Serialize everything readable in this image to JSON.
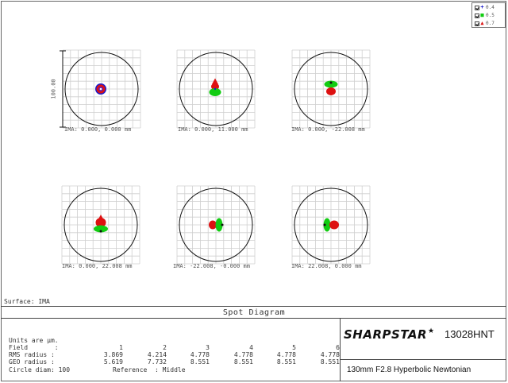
{
  "legend": [
    {
      "symbol": "+",
      "color": "#1a1acc",
      "value": "0.4"
    },
    {
      "symbol": "■",
      "color": "#12cc12",
      "value": "0.5"
    },
    {
      "symbol": "▲",
      "color": "#dd1111",
      "value": "0.7"
    }
  ],
  "scale_label": "100.00",
  "spots": [
    {
      "ima": "IMA: 0.000, 0.000 mm"
    },
    {
      "ima": "IMA: 0.000, 11.000 mm"
    },
    {
      "ima": "IMA: 0.000, -22.008 mm"
    },
    {
      "ima": "IMA: 0.000, 22.008 mm"
    },
    {
      "ima": "IMA: -22.008, -0.000 mm"
    },
    {
      "ima": "IMA: 22.008, 0.000 mm"
    }
  ],
  "surface": "Surface: IMA",
  "title": "Spot Diagram",
  "units": "Units are µm.",
  "table": {
    "field_label": "Field       :",
    "rms_label": "RMS radius :",
    "geo_label": "GEO radius :",
    "fields": [
      "1",
      "2",
      "3",
      "4",
      "5",
      "6"
    ],
    "rms": [
      "3.869",
      "4.214",
      "4.778",
      "4.778",
      "4.778",
      "4.778"
    ],
    "geo": [
      "5.619",
      "7.732",
      "8.551",
      "8.551",
      "8.551",
      "8.551"
    ],
    "circle_diam": "Circle diam: 100",
    "reference": "Reference  : Middle"
  },
  "brand": "SHARPSTAR",
  "model": "13028HNT",
  "description": "130mm F2.8 Hyperbolic Newtonian",
  "colors": {
    "blue": "#1a1acc",
    "green": "#12cc12",
    "red": "#dd1111",
    "grid": "#cfcfcf"
  }
}
